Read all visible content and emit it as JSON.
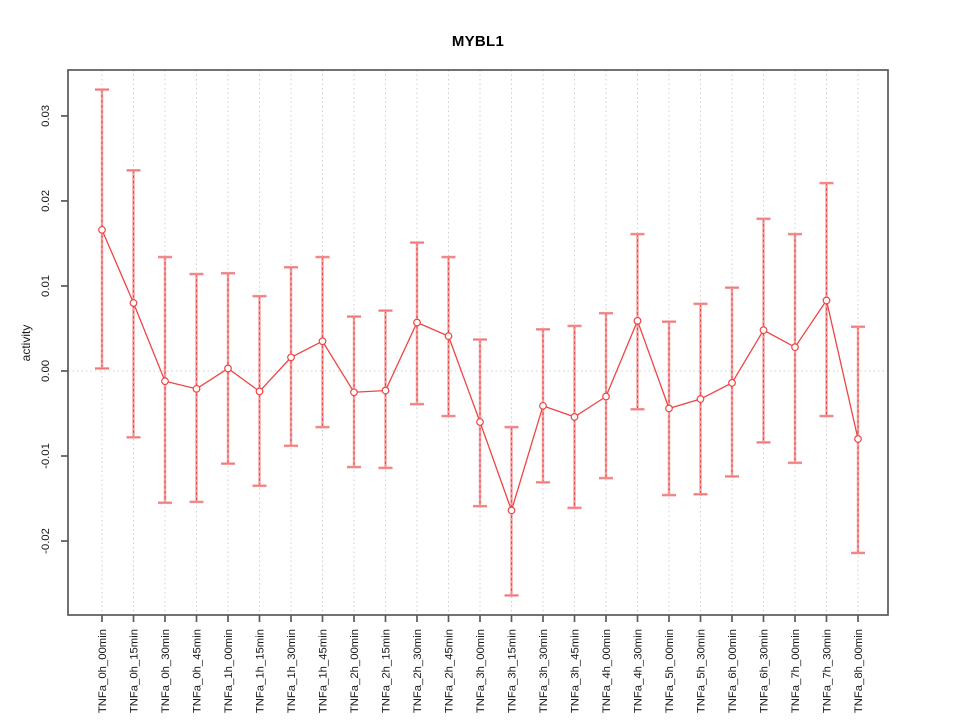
{
  "chart_data": {
    "type": "line",
    "title": "MYBL1",
    "ylabel": "activity",
    "xlabel": "",
    "legend": "none",
    "grid": {
      "vertical_dotted_per_category": true,
      "horizontal_dotted_at_zero": true
    },
    "ylim": [
      -0.0287,
      0.0354
    ],
    "ytick_values": [
      -0.02,
      -0.01,
      0.0,
      0.01,
      0.02,
      0.03
    ],
    "ytick_labels": [
      "-0.02",
      "-0.01",
      "0.00",
      "0.01",
      "0.02",
      "0.03"
    ],
    "categories": [
      "TNFa_0h_00min",
      "TNFa_0h_15min",
      "TNFa_0h_30min",
      "TNFa_0h_45min",
      "TNFa_1h_00min",
      "TNFa_1h_15min",
      "TNFa_1h_30min",
      "TNFa_1h_45min",
      "TNFa_2h_00min",
      "TNFa_2h_15min",
      "TNFa_2h_30min",
      "TNFa_2h_45min",
      "TNFa_3h_00min",
      "TNFa_3h_15min",
      "TNFa_3h_30min",
      "TNFa_3h_45min",
      "TNFa_4h_00min",
      "TNFa_4h_30min",
      "TNFa_5h_00min",
      "TNFa_5h_30min",
      "TNFa_6h_00min",
      "TNFa_6h_30min",
      "TNFa_7h_00min",
      "TNFa_7h_30min",
      "TNFa_8h_00min"
    ],
    "values": [
      0.0166,
      0.008,
      -0.0012,
      -0.0021,
      0.0003,
      -0.0024,
      0.0016,
      0.0035,
      -0.0025,
      -0.0023,
      0.0057,
      0.0041,
      -0.006,
      -0.0164,
      -0.0041,
      -0.0054,
      -0.003,
      0.0059,
      -0.0044,
      -0.0033,
      -0.0014,
      0.0048,
      0.0028,
      0.0083,
      -0.008
    ],
    "error_high": [
      0.0331,
      0.0236,
      0.0134,
      0.0114,
      0.0115,
      0.0088,
      0.0122,
      0.0134,
      0.0064,
      0.0071,
      0.0151,
      0.0134,
      0.0037,
      -0.0066,
      0.0049,
      0.0053,
      0.0068,
      0.0161,
      0.0058,
      0.0079,
      0.0098,
      0.0179,
      0.0161,
      0.0221,
      0.0052
    ],
    "error_low": [
      0.0003,
      -0.0078,
      -0.0155,
      -0.0154,
      -0.0109,
      -0.0135,
      -0.0088,
      -0.0066,
      -0.0113,
      -0.0114,
      -0.0039,
      -0.0053,
      -0.0159,
      -0.0264,
      -0.0131,
      -0.0161,
      -0.0126,
      -0.0045,
      -0.0146,
      -0.0145,
      -0.0124,
      -0.0084,
      -0.0108,
      -0.0053,
      -0.0214
    ],
    "colors": {
      "series": "#ee4545",
      "error_bar": "#f59c9c",
      "error_bar_dash": "#e84848",
      "error_cap_core": "#f07474",
      "grid": "#cfcfcf",
      "axis": "#595959",
      "tick_text": "#1a1a1a",
      "title_text": "#000000"
    }
  }
}
